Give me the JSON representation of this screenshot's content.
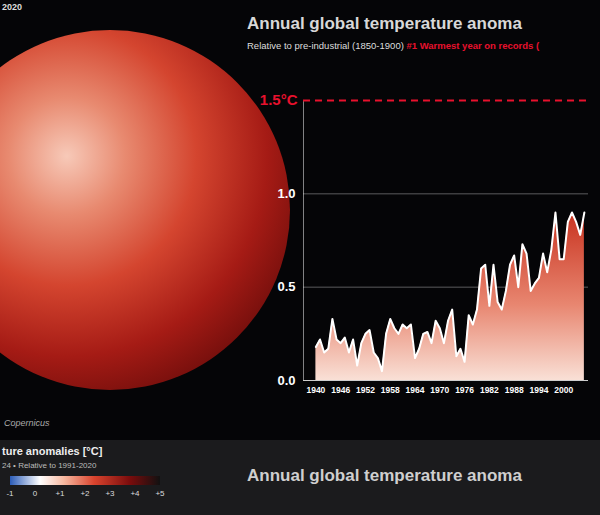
{
  "chart_data": {
    "type": "area",
    "title": "Annual global temperature anoma",
    "subtitle": "Relative to pre-industrial (1850-1900)",
    "annotations": [
      {
        "text": "#1 Warmest year on records (",
        "color": "#e8112d"
      },
      {
        "text": "1.5°C",
        "y": 1.5,
        "color": "#e8112d"
      }
    ],
    "x": [
      1940,
      1941,
      1942,
      1943,
      1944,
      1945,
      1946,
      1947,
      1948,
      1949,
      1950,
      1951,
      1952,
      1953,
      1954,
      1955,
      1956,
      1957,
      1958,
      1959,
      1960,
      1961,
      1962,
      1963,
      1964,
      1965,
      1966,
      1967,
      1968,
      1969,
      1970,
      1971,
      1972,
      1973,
      1974,
      1975,
      1976,
      1977,
      1978,
      1979,
      1980,
      1981,
      1982,
      1983,
      1984,
      1985,
      1986,
      1987,
      1988,
      1989,
      1990,
      1991,
      1992,
      1993,
      1994,
      1995,
      1996,
      1997,
      1998,
      1999,
      2000,
      2001,
      2002,
      2003,
      2004,
      2005
    ],
    "values": [
      0.18,
      0.22,
      0.15,
      0.17,
      0.33,
      0.22,
      0.2,
      0.23,
      0.15,
      0.22,
      0.08,
      0.2,
      0.25,
      0.27,
      0.15,
      0.12,
      0.05,
      0.25,
      0.33,
      0.28,
      0.25,
      0.3,
      0.28,
      0.3,
      0.12,
      0.17,
      0.25,
      0.26,
      0.2,
      0.32,
      0.28,
      0.2,
      0.32,
      0.38,
      0.13,
      0.17,
      0.1,
      0.35,
      0.3,
      0.38,
      0.6,
      0.62,
      0.4,
      0.62,
      0.42,
      0.38,
      0.48,
      0.62,
      0.67,
      0.5,
      0.73,
      0.68,
      0.48,
      0.52,
      0.55,
      0.68,
      0.58,
      0.7,
      0.9,
      0.65,
      0.65,
      0.85,
      0.9,
      0.85,
      0.78,
      0.9
    ],
    "color": "#ffffff",
    "xlim": [
      1937,
      2006
    ],
    "xticks": [
      1940,
      1946,
      1952,
      1958,
      1964,
      1970,
      1976,
      1982,
      1988,
      1994,
      2000
    ],
    "ylim": [
      0,
      1.5
    ],
    "yticks": [
      {
        "value": 0,
        "label": "0.0"
      },
      {
        "value": 0.5,
        "label": "0.5"
      },
      {
        "value": 1,
        "label": "1.0"
      }
    ],
    "grid": true
  },
  "map": {
    "year": "2020",
    "logo_text": "Copernicus",
    "colorbar": {
      "title": "ture anomalies [°C]",
      "subtitle": "24 • Relative to 1991-2020",
      "range": [
        -1,
        5
      ],
      "ticks": [
        {
          "value": -1,
          "label": "-1"
        },
        0,
        {
          "value": 1,
          "label": "+1"
        },
        {
          "value": 2,
          "label": "+2"
        },
        {
          "value": 3,
          "label": "+3"
        },
        {
          "value": 4,
          "label": "+4"
        },
        {
          "value": 5,
          "label": "+5"
        }
      ]
    }
  },
  "footer": {
    "title": "Annual global temperature anoma"
  }
}
